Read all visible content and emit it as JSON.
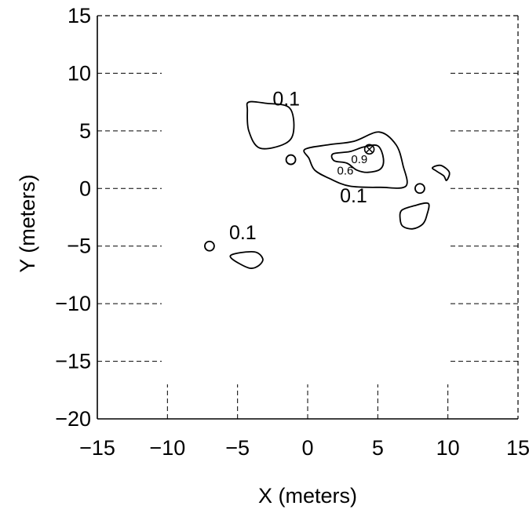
{
  "chart_data": {
    "type": "contour",
    "xlabel": "X (meters)",
    "ylabel": "Y (meters)",
    "xlim": [
      -15,
      15
    ],
    "ylim": [
      -20,
      15
    ],
    "xticks": [
      -15,
      -10,
      -5,
      0,
      5,
      10,
      15
    ],
    "yticks": [
      -20,
      -15,
      -10,
      -5,
      0,
      5,
      10,
      15
    ],
    "grid": "dashed",
    "contours": [
      {
        "level": "0.1",
        "label_at": [
          -2.5,
          7.2
        ],
        "points": [
          [
            -4.2,
            7.5
          ],
          [
            -3.0,
            7.4
          ],
          [
            -1.3,
            7.0
          ],
          [
            -1.0,
            5.0
          ],
          [
            -1.6,
            3.9
          ],
          [
            -3.4,
            3.5
          ],
          [
            -4.2,
            5.0
          ],
          [
            -4.3,
            6.8
          ]
        ]
      },
      {
        "level": "0.1",
        "label_at": [
          2.3,
          -1.2
        ],
        "points": [
          [
            -0.2,
            3.4
          ],
          [
            1.5,
            3.8
          ],
          [
            3.3,
            4.1
          ],
          [
            5.1,
            4.9
          ],
          [
            6.3,
            3.8
          ],
          [
            6.8,
            2.0
          ],
          [
            7.0,
            0.2
          ],
          [
            5.2,
            0.1
          ],
          [
            3.0,
            0.2
          ],
          [
            1.5,
            0.9
          ],
          [
            0.5,
            1.6
          ],
          [
            0.1,
            2.6
          ]
        ]
      },
      {
        "level": "0.6",
        "label_at": [
          2.1,
          1.2
        ],
        "points": [
          [
            1.8,
            3.0
          ],
          [
            3.0,
            3.2
          ],
          [
            4.0,
            3.6
          ],
          [
            5.0,
            3.7
          ],
          [
            5.4,
            2.6
          ],
          [
            5.2,
            1.7
          ],
          [
            4.3,
            1.4
          ],
          [
            3.5,
            1.6
          ],
          [
            2.8,
            2.2
          ],
          [
            1.9,
            2.4
          ]
        ]
      },
      {
        "level": "0.9",
        "label_at": [
          3.1,
          2.2
        ],
        "points": []
      },
      {
        "level": "0.1",
        "label_at": [
          -5.6,
          -4.4
        ],
        "points": [
          [
            -5.3,
            -5.7
          ],
          [
            -3.8,
            -5.5
          ],
          [
            -3.2,
            -6.1
          ],
          [
            -3.5,
            -6.7
          ],
          [
            -4.2,
            -6.9
          ],
          [
            -5.4,
            -6.1
          ]
        ]
      },
      {
        "level": "",
        "label_at": null,
        "points": [
          [
            6.7,
            -1.9
          ],
          [
            7.6,
            -1.5
          ],
          [
            8.6,
            -1.3
          ],
          [
            8.5,
            -2.3
          ],
          [
            8.2,
            -3.1
          ],
          [
            7.5,
            -3.5
          ],
          [
            6.8,
            -3.3
          ],
          [
            6.6,
            -2.7
          ]
        ]
      },
      {
        "level": "",
        "label_at": null,
        "points": [
          [
            8.9,
            1.8
          ],
          [
            9.5,
            2.0
          ],
          [
            10.1,
            1.4
          ],
          [
            9.9,
            0.7
          ],
          [
            9.7,
            1.1
          ],
          [
            9.2,
            1.5
          ]
        ]
      }
    ],
    "circles": [
      [
        -1.2,
        2.5
      ],
      [
        8.0,
        0.0
      ],
      [
        -7.0,
        -5.0
      ]
    ],
    "markers": [
      {
        "type": "crossed-circle",
        "at": [
          4.4,
          3.4
        ]
      }
    ]
  }
}
